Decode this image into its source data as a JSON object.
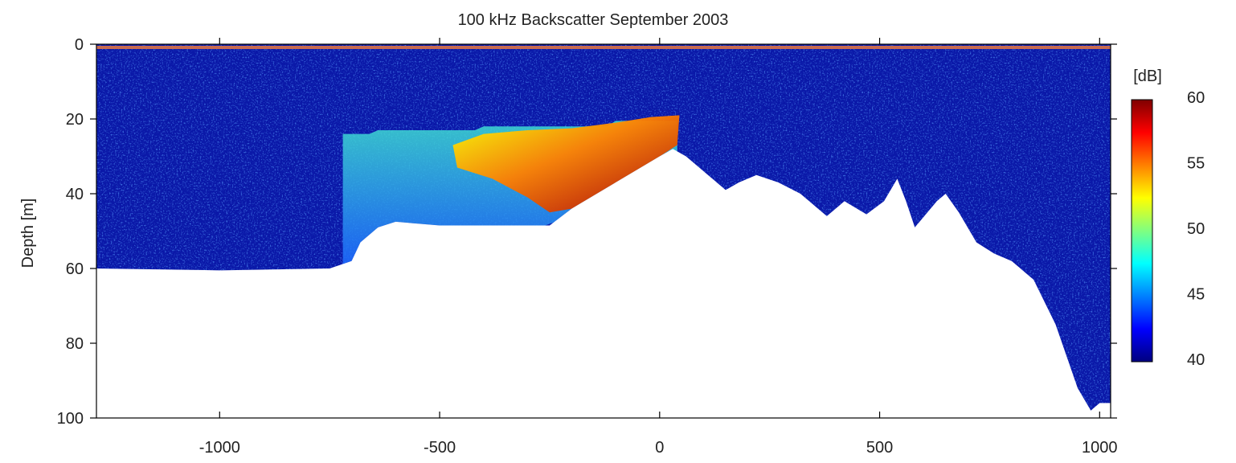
{
  "chart_data": {
    "type": "heatmap",
    "title": "100 kHz Backscatter  September 2003",
    "xlabel": "",
    "ylabel": "Depth [m]",
    "xlim": [
      -1280,
      1025
    ],
    "ylim": [
      100,
      0
    ],
    "x_ticks": [
      -1000,
      -500,
      0,
      500,
      1000
    ],
    "y_ticks": [
      0,
      20,
      40,
      60,
      80,
      100
    ],
    "colorbar": {
      "label": "[dB]",
      "range": [
        40,
        60
      ],
      "ticks": [
        40,
        45,
        50,
        55,
        60
      ],
      "colormap": [
        "#00007f",
        "#0000ff",
        "#0080ff",
        "#00ffff",
        "#80ff80",
        "#ffff00",
        "#ff8000",
        "#ff0000",
        "#7f0000"
      ]
    },
    "seafloor_depth": [
      [
        -1280,
        60
      ],
      [
        -1000,
        60.5
      ],
      [
        -750,
        60
      ],
      [
        -700,
        58
      ],
      [
        -680,
        53
      ],
      [
        -640,
        49
      ],
      [
        -600,
        47.5
      ],
      [
        -500,
        48.5
      ],
      [
        -400,
        48.5
      ],
      [
        -300,
        48.5
      ],
      [
        -250,
        48.5
      ],
      [
        -200,
        44
      ],
      [
        -100,
        37
      ],
      [
        0,
        30
      ],
      [
        30,
        28
      ],
      [
        60,
        30
      ],
      [
        100,
        34
      ],
      [
        150,
        39
      ],
      [
        180,
        37
      ],
      [
        220,
        35
      ],
      [
        270,
        37
      ],
      [
        320,
        40
      ],
      [
        380,
        46
      ],
      [
        420,
        42
      ],
      [
        470,
        45.5
      ],
      [
        510,
        42
      ],
      [
        540,
        36
      ],
      [
        560,
        42
      ],
      [
        580,
        49
      ],
      [
        630,
        42
      ],
      [
        650,
        40
      ],
      [
        680,
        45
      ],
      [
        720,
        53
      ],
      [
        760,
        56
      ],
      [
        800,
        58
      ],
      [
        850,
        63
      ],
      [
        900,
        75
      ],
      [
        950,
        92
      ],
      [
        980,
        98
      ],
      [
        1000,
        96
      ],
      [
        1025,
        96
      ]
    ],
    "scattering_layers": [
      {
        "name": "",
        "x": [
          -450,
          -100
        ],
        "depth_top": 22,
        "level_db": 53
      },
      {
        "name": "",
        "x": [
          -250,
          40
        ],
        "depth_top": 20,
        "level_db": 59
      }
    ]
  }
}
